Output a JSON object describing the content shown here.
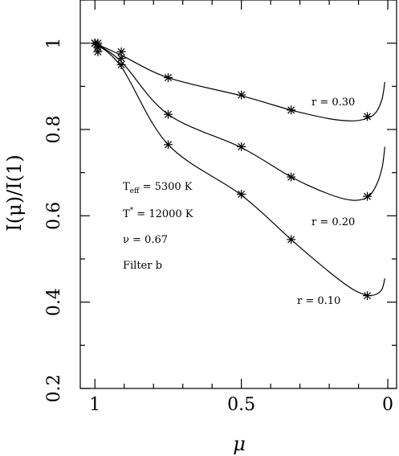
{
  "chart_data": {
    "type": "line",
    "xlabel": "μ",
    "ylabel": "I(μ)/I(1)",
    "xlim": [
      1.05,
      -0.03
    ],
    "ylim": [
      0.2,
      1.1
    ],
    "x_ticks": [
      "1",
      "0.5",
      "0"
    ],
    "y_ticks": [
      "0.2",
      "0.4",
      "0.6",
      "0.8",
      "1"
    ],
    "grid": false,
    "annotations": {
      "teff": {
        "main": "T",
        "sub": "eff",
        "value": " = 5300 K"
      },
      "tstar": {
        "main": "T",
        "sup": "*",
        "value": " = 12000 K"
      },
      "nu": "ν = 0.67",
      "filter": "Filter b"
    },
    "series": [
      {
        "label": "r = 0.30",
        "points": {
          "x": [
            1.0,
            0.99,
            0.99,
            0.99,
            0.91,
            0.75,
            0.5,
            0.33,
            0.07
          ],
          "y": [
            1.0,
            1.0,
            0.99,
            0.98,
            0.98,
            0.92,
            0.88,
            0.845,
            0.83
          ]
        },
        "curve": {
          "x": [
            1.0,
            0.91,
            0.75,
            0.5,
            0.33,
            0.2,
            0.12,
            0.07,
            0.04,
            0.02,
            0.01
          ],
          "y": [
            1.0,
            0.972,
            0.92,
            0.878,
            0.845,
            0.825,
            0.82,
            0.826,
            0.84,
            0.87,
            0.91
          ]
        }
      },
      {
        "label": "r = 0.20",
        "points": {
          "x": [
            1.0,
            0.99,
            0.91,
            0.75,
            0.5,
            0.33,
            0.07
          ],
          "y": [
            1.0,
            0.99,
            0.965,
            0.835,
            0.76,
            0.69,
            0.645
          ]
        },
        "curve": {
          "x": [
            1.0,
            0.91,
            0.75,
            0.5,
            0.33,
            0.2,
            0.12,
            0.07,
            0.04,
            0.02,
            0.01
          ],
          "y": [
            1.0,
            0.957,
            0.835,
            0.758,
            0.69,
            0.65,
            0.636,
            0.643,
            0.67,
            0.71,
            0.76
          ]
        }
      },
      {
        "label": "r = 0.10",
        "points": {
          "x": [
            1.0,
            0.99,
            0.91,
            0.75,
            0.5,
            0.33,
            0.07
          ],
          "y": [
            1.0,
            0.99,
            0.95,
            0.765,
            0.65,
            0.545,
            0.415
          ]
        },
        "curve": {
          "x": [
            1.0,
            0.91,
            0.75,
            0.5,
            0.33,
            0.2,
            0.12,
            0.07,
            0.04,
            0.02,
            0.01
          ],
          "y": [
            1.0,
            0.945,
            0.765,
            0.648,
            0.545,
            0.47,
            0.43,
            0.416,
            0.418,
            0.43,
            0.455
          ]
        }
      }
    ]
  }
}
